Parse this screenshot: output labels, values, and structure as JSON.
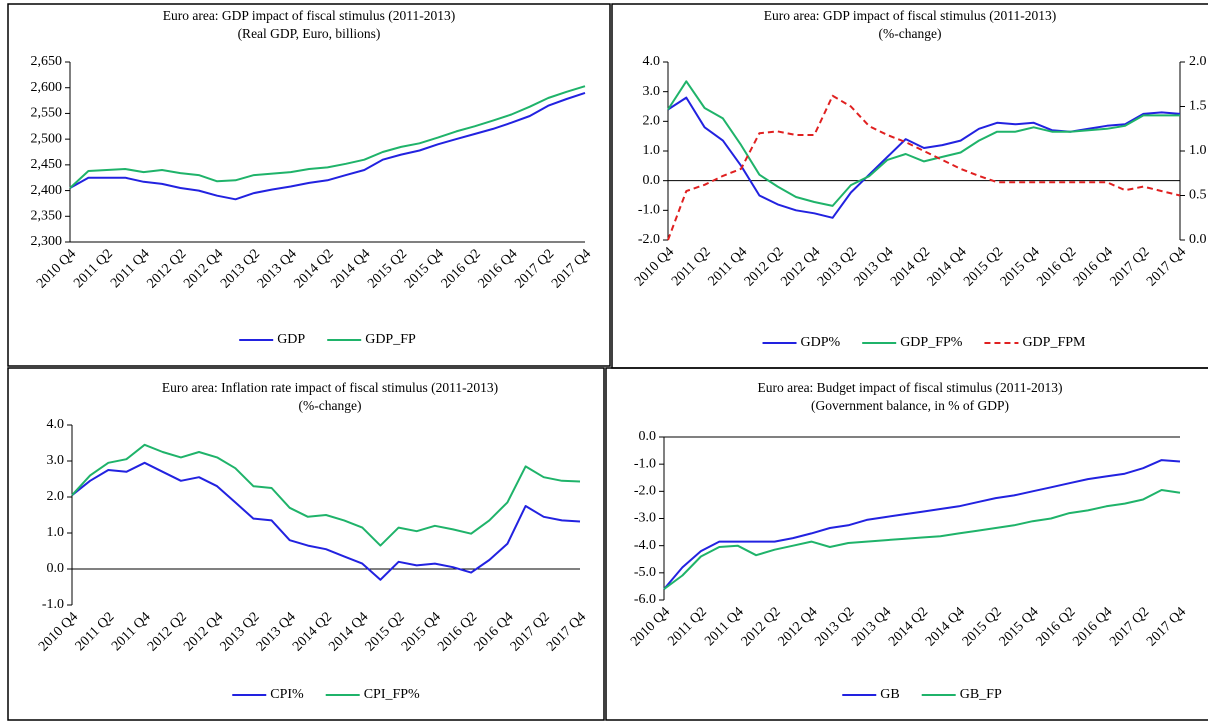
{
  "chart_data": [
    {
      "type": "line",
      "title": "Euro area: GDP impact of fiscal stimulus (2011-2013)",
      "subtitle": "(Real GDP, Euro, billions)",
      "categories": [
        "2010 Q4",
        null,
        "2011 Q2",
        null,
        "2011 Q4",
        null,
        "2012 Q2",
        null,
        "2012 Q4",
        null,
        "2013 Q2",
        null,
        "2013 Q4",
        null,
        "2014 Q2",
        null,
        "2014 Q4",
        null,
        "2015 Q2",
        null,
        "2015 Q4",
        null,
        "2016 Q2",
        null,
        "2016 Q4",
        null,
        "2017 Q2",
        null,
        "2017 Q4"
      ],
      "series": [
        {
          "name": "GDP",
          "color": "#2222e0",
          "values": [
            2405,
            2425,
            2425,
            2425,
            2417,
            2413,
            2405,
            2400,
            2390,
            2383,
            2395,
            2402,
            2408,
            2415,
            2420,
            2430,
            2440,
            2460,
            2470,
            2478,
            2490,
            2500,
            2510,
            2520,
            2532,
            2545,
            2565,
            2578,
            2590
          ]
        },
        {
          "name": "GDP_FP",
          "color": "#1fb36a",
          "values": [
            2405,
            2438,
            2440,
            2442,
            2436,
            2440,
            2434,
            2430,
            2418,
            2420,
            2430,
            2433,
            2436,
            2442,
            2445,
            2452,
            2460,
            2475,
            2485,
            2492,
            2503,
            2515,
            2525,
            2536,
            2548,
            2563,
            2580,
            2592,
            2603
          ]
        }
      ],
      "ylim": [
        2300,
        2650
      ],
      "yticks": [
        {
          "value": 2300,
          "label": "2,300"
        },
        {
          "value": 2350,
          "label": "2,350"
        },
        {
          "value": 2400,
          "label": "2,400"
        },
        {
          "value": 2450,
          "label": "2,450"
        },
        {
          "value": 2500,
          "label": "2,500"
        },
        {
          "value": 2550,
          "label": "2,550"
        },
        {
          "value": 2600,
          "label": "2,600"
        },
        {
          "value": 2650,
          "label": "2,650"
        }
      ],
      "legend": "bottom"
    },
    {
      "type": "line",
      "title": "Euro area: GDP impact of fiscal stimulus (2011-2013)",
      "subtitle": "(%-change)",
      "categories": [
        "2010 Q4",
        null,
        "2011 Q2",
        null,
        "2011 Q4",
        null,
        "2012 Q2",
        null,
        "2012 Q4",
        null,
        "2013 Q2",
        null,
        "2013 Q4",
        null,
        "2014 Q2",
        null,
        "2014 Q4",
        null,
        "2015 Q2",
        null,
        "2015 Q4",
        null,
        "2016 Q2",
        null,
        "2016 Q4",
        null,
        "2017 Q2",
        null,
        "2017 Q4"
      ],
      "series": [
        {
          "name": "GDP%",
          "color": "#2222e0",
          "values": [
            2.4,
            2.8,
            1.8,
            1.35,
            0.5,
            -0.5,
            -0.8,
            -1.0,
            -1.1,
            -1.25,
            -0.4,
            0.2,
            0.8,
            1.4,
            1.1,
            1.2,
            1.35,
            1.75,
            1.95,
            1.9,
            1.95,
            1.7,
            1.65,
            1.75,
            1.85,
            1.9,
            2.25,
            2.3,
            2.25
          ]
        },
        {
          "name": "GDP_FP%",
          "color": "#1fb36a",
          "values": [
            2.4,
            3.35,
            2.45,
            2.1,
            1.2,
            0.2,
            -0.2,
            -0.55,
            -0.72,
            -0.85,
            -0.15,
            0.15,
            0.7,
            0.9,
            0.65,
            0.8,
            0.95,
            1.35,
            1.65,
            1.65,
            1.8,
            1.65,
            1.65,
            1.7,
            1.75,
            1.85,
            2.2,
            2.2,
            2.2
          ]
        },
        {
          "name": "GDP_FPM",
          "color": "#e02020",
          "axis": "y2",
          "line_style": "dashed",
          "values": [
            0.0,
            0.55,
            0.62,
            0.72,
            0.8,
            1.2,
            1.22,
            1.18,
            1.18,
            1.62,
            1.5,
            1.28,
            1.18,
            1.1,
            1.0,
            0.9,
            0.8,
            0.72,
            0.65,
            0.65,
            0.65,
            0.65,
            0.65,
            0.65,
            0.65,
            0.56,
            0.6,
            0.55,
            0.5
          ]
        }
      ],
      "ylim": [
        -2,
        4
      ],
      "yticks": [
        {
          "value": -2,
          "label": "-2.0"
        },
        {
          "value": -1,
          "label": "-1.0"
        },
        {
          "value": 0,
          "label": "0.0"
        },
        {
          "value": 1,
          "label": "1.0"
        },
        {
          "value": 2,
          "label": "2.0"
        },
        {
          "value": 3,
          "label": "3.0"
        },
        {
          "value": 4,
          "label": "4.0"
        }
      ],
      "y2lim": [
        0,
        2
      ],
      "y2ticks": [
        {
          "value": 0,
          "label": "0.0"
        },
        0.5,
        {
          "value": 1,
          "label": "1.0"
        },
        1.5,
        {
          "value": 2,
          "label": "2.0"
        }
      ],
      "legend": "bottom"
    },
    {
      "type": "line",
      "title": "Euro area: Inflation rate impact of fiscal stimulus (2011-2013)",
      "subtitle": "(%-change)",
      "categories": [
        "2010 Q4",
        null,
        "2011 Q2",
        null,
        "2011 Q4",
        null,
        "2012 Q2",
        null,
        "2012 Q4",
        null,
        "2013 Q2",
        null,
        "2013 Q4",
        null,
        "2014 Q2",
        null,
        "2014 Q4",
        null,
        "2015 Q2",
        null,
        "2015 Q4",
        null,
        "2016 Q2",
        null,
        "2016 Q4",
        null,
        "2017 Q2",
        null,
        "2017 Q4"
      ],
      "series": [
        {
          "name": "CPI%",
          "color": "#2222e0",
          "values": [
            2.05,
            2.45,
            2.75,
            2.7,
            2.95,
            2.7,
            2.45,
            2.55,
            2.3,
            1.85,
            1.4,
            1.35,
            0.8,
            0.65,
            0.55,
            0.35,
            0.15,
            -0.3,
            0.2,
            0.1,
            0.15,
            0.05,
            -0.1,
            0.25,
            0.7,
            1.75,
            1.45,
            1.35,
            1.32
          ]
        },
        {
          "name": "CPI_FP%",
          "color": "#1fb36a",
          "values": [
            2.05,
            2.6,
            2.95,
            3.05,
            3.45,
            3.25,
            3.1,
            3.25,
            3.1,
            2.8,
            2.3,
            2.25,
            1.7,
            1.45,
            1.5,
            1.35,
            1.15,
            0.65,
            1.15,
            1.05,
            1.2,
            1.1,
            0.98,
            1.35,
            1.85,
            2.85,
            2.55,
            2.45,
            2.43
          ]
        }
      ],
      "ylim": [
        -1,
        4
      ],
      "yticks": [
        {
          "value": -1,
          "label": "-1.0"
        },
        {
          "value": 0,
          "label": "0.0"
        },
        {
          "value": 1,
          "label": "1.0"
        },
        {
          "value": 2,
          "label": "2.0"
        },
        {
          "value": 3,
          "label": "3.0"
        },
        {
          "value": 4,
          "label": "4.0"
        }
      ],
      "legend": "bottom"
    },
    {
      "type": "line",
      "title": "Euro area: Budget impact of fiscal stimulus (2011-2013)",
      "subtitle": "(Government balance, in % of GDP)",
      "categories": [
        "2010 Q4",
        null,
        "2011 Q2",
        null,
        "2011 Q4",
        null,
        "2012 Q2",
        null,
        "2012 Q4",
        null,
        "2013 Q2",
        null,
        "2013 Q4",
        null,
        "2014 Q2",
        null,
        "2014 Q4",
        null,
        "2015 Q2",
        null,
        "2015 Q4",
        null,
        "2016 Q2",
        null,
        "2016 Q4",
        null,
        "2017 Q2",
        null,
        "2017 Q4"
      ],
      "series": [
        {
          "name": "GB",
          "color": "#2222e0",
          "values": [
            -5.6,
            -4.8,
            -4.2,
            -3.85,
            -3.85,
            -3.85,
            -3.85,
            -3.72,
            -3.55,
            -3.35,
            -3.25,
            -3.05,
            -2.95,
            -2.85,
            -2.75,
            -2.65,
            -2.55,
            -2.4,
            -2.25,
            -2.15,
            -2.0,
            -1.85,
            -1.7,
            -1.55,
            -1.45,
            -1.35,
            -1.15,
            -0.85,
            -0.9
          ]
        },
        {
          "name": "GB_FP",
          "color": "#1fb36a",
          "values": [
            -5.6,
            -5.1,
            -4.4,
            -4.05,
            -4.0,
            -4.35,
            -4.15,
            -4.0,
            -3.85,
            -4.05,
            -3.9,
            -3.85,
            -3.8,
            -3.75,
            -3.7,
            -3.65,
            -3.55,
            -3.45,
            -3.35,
            -3.25,
            -3.1,
            -3.0,
            -2.8,
            -2.7,
            -2.55,
            -2.45,
            -2.3,
            -1.95,
            -2.05
          ]
        }
      ],
      "ylim": [
        -6,
        0
      ],
      "yticks": [
        {
          "value": -6,
          "label": "-6.0"
        },
        {
          "value": -5,
          "label": "-5.0"
        },
        {
          "value": -4,
          "label": "-4.0"
        },
        {
          "value": -3,
          "label": "-3.0"
        },
        {
          "value": -2,
          "label": "-2.0"
        },
        {
          "value": -1,
          "label": "-1.0"
        },
        {
          "value": 0,
          "label": "0.0"
        }
      ],
      "legend": "bottom"
    }
  ]
}
